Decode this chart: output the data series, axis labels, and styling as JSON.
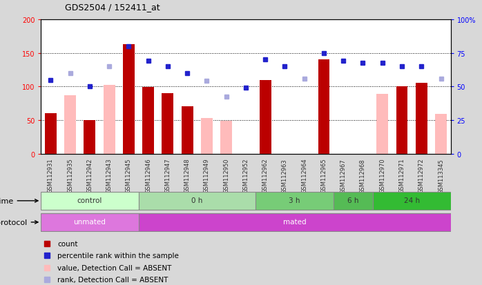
{
  "title": "GDS2504 / 152411_at",
  "samples": [
    "GSM112931",
    "GSM112935",
    "GSM112942",
    "GSM112943",
    "GSM112945",
    "GSM112946",
    "GSM112947",
    "GSM112948",
    "GSM112949",
    "GSM112950",
    "GSM112952",
    "GSM112962",
    "GSM112963",
    "GSM112964",
    "GSM112965",
    "GSM112967",
    "GSM112968",
    "GSM112970",
    "GSM112971",
    "GSM112972",
    "GSM113345"
  ],
  "count_values": [
    60,
    null,
    50,
    null,
    163,
    99,
    90,
    70,
    null,
    null,
    null,
    110,
    null,
    null,
    140,
    null,
    null,
    null,
    100,
    105,
    null
  ],
  "count_absent": [
    null,
    87,
    null,
    102,
    null,
    null,
    null,
    null,
    53,
    49,
    null,
    null,
    null,
    null,
    null,
    null,
    null,
    89,
    null,
    null,
    59
  ],
  "rank_values": [
    110,
    null,
    100,
    null,
    160,
    138,
    130,
    120,
    null,
    null,
    98,
    140,
    130,
    null,
    150,
    138,
    135,
    135,
    130,
    130,
    null
  ],
  "rank_absent": [
    null,
    120,
    null,
    130,
    null,
    null,
    null,
    null,
    108,
    85,
    null,
    null,
    null,
    112,
    null,
    null,
    null,
    null,
    null,
    null,
    112
  ],
  "time_groups": [
    {
      "label": "control",
      "start": 0,
      "end": 5,
      "color": "#ccffcc"
    },
    {
      "label": "0 h",
      "start": 5,
      "end": 11,
      "color": "#aaddaa"
    },
    {
      "label": "3 h",
      "start": 11,
      "end": 15,
      "color": "#77cc77"
    },
    {
      "label": "6 h",
      "start": 15,
      "end": 17,
      "color": "#55bb55"
    },
    {
      "label": "24 h",
      "start": 17,
      "end": 21,
      "color": "#33bb33"
    }
  ],
  "protocol_groups": [
    {
      "label": "unmated",
      "start": 0,
      "end": 5,
      "color": "#dd77dd"
    },
    {
      "label": "mated",
      "start": 5,
      "end": 21,
      "color": "#cc44cc"
    }
  ],
  "ylim_left": [
    0,
    200
  ],
  "ylim_right": [
    0,
    100
  ],
  "yticks_left": [
    0,
    50,
    100,
    150,
    200
  ],
  "ytick_labels_left": [
    "0",
    "50",
    "100",
    "150",
    "200"
  ],
  "yticks_right": [
    0,
    25,
    50,
    75,
    100
  ],
  "ytick_labels_right": [
    "0",
    "25",
    "50",
    "75",
    "100%"
  ],
  "bar_color_present": "#bb0000",
  "bar_color_absent": "#ffbbbb",
  "dot_color_present": "#2222cc",
  "dot_color_absent": "#aaaadd",
  "background_color": "#d8d8d8",
  "plot_bg": "#ffffff",
  "grid_color": "#000000",
  "grid_yticks": [
    50,
    100,
    150
  ]
}
